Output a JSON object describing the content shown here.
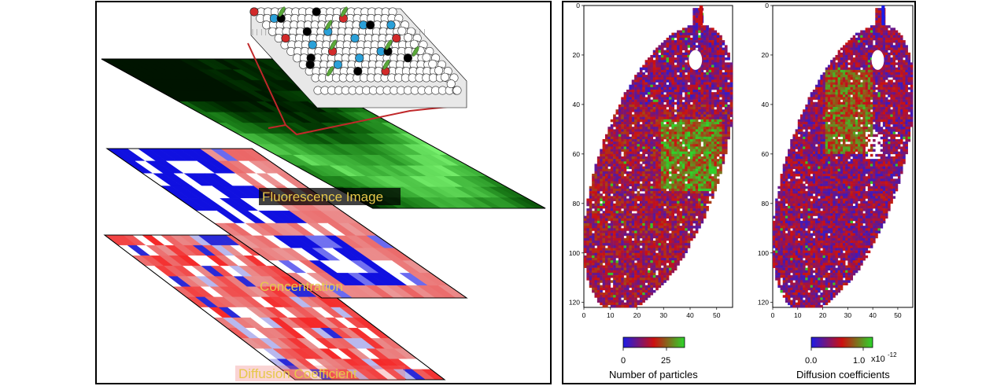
{
  "left_panel": {
    "layers": [
      {
        "id": "fluorescence",
        "label": "Fluorescence Image",
        "label_color": "#e6c84a"
      },
      {
        "id": "concentration",
        "label": "Concentration",
        "label_color": "#e6c84a"
      },
      {
        "id": "diffusion",
        "label": "Diffusion Coefficient",
        "label_color": "#e6c84a"
      }
    ],
    "membrane_legend_colors": {
      "lipid": "#ffffff",
      "blue_particle": "#2aa0d8",
      "red_particle": "#d22a2a",
      "black_particle": "#000000",
      "green_particle": "#5aa83a"
    },
    "connector_color": "#c0282a"
  },
  "chart_data": [
    {
      "type": "heatmap",
      "id": "particles",
      "title": "",
      "xlabel": "",
      "ylabel": "",
      "x_ticks": [
        "0",
        "10",
        "20",
        "30",
        "40",
        "50"
      ],
      "y_ticks": [
        "0",
        "20",
        "40",
        "60",
        "80",
        "100",
        "120"
      ],
      "xlim": [
        0,
        56
      ],
      "ylim": [
        0,
        122
      ],
      "colorbar": {
        "label": "Number of particles",
        "ticks": [
          "0",
          "25"
        ],
        "range": [
          0,
          35
        ],
        "colors": [
          "#1c1ce6",
          "#cc1010",
          "#2bd62b"
        ]
      }
    },
    {
      "type": "heatmap",
      "id": "diffusion",
      "title": "",
      "xlabel": "",
      "ylabel": "",
      "x_ticks": [
        "0",
        "10",
        "20",
        "30",
        "40",
        "50"
      ],
      "y_ticks": [
        "0",
        "20",
        "40",
        "60",
        "80",
        "100",
        "120"
      ],
      "xlim": [
        0,
        56
      ],
      "ylim": [
        0,
        122
      ],
      "colorbar": {
        "label": "Diffusion coefficients",
        "ticks": [
          "0.0",
          "1.0"
        ],
        "exponent": "x10",
        "exponent_power": "-12",
        "range": [
          0,
          1.2
        ],
        "colors": [
          "#1c1ce6",
          "#cc1010",
          "#2bd62b"
        ]
      }
    }
  ]
}
